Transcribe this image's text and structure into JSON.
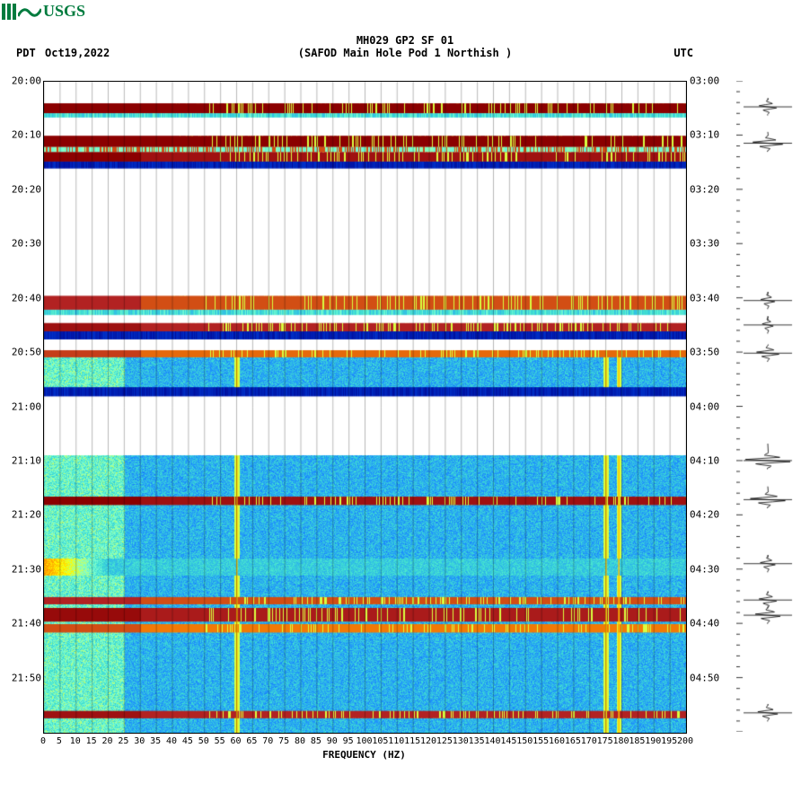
{
  "logo": {
    "text": "USGS",
    "color": "#007b3e"
  },
  "header": {
    "title_main": "MH029 GP2 SF 01",
    "title_sub": "(SAFOD Main Hole Pod 1 Northish )",
    "tz_left": "PDT",
    "date": "Oct19,2022",
    "tz_right": "UTC"
  },
  "axes": {
    "x_title": "FREQUENCY (HZ)",
    "x_min": 0,
    "x_max": 200,
    "x_ticks": [
      0,
      5,
      10,
      15,
      20,
      25,
      30,
      35,
      40,
      45,
      50,
      55,
      60,
      65,
      70,
      75,
      80,
      85,
      90,
      95,
      100,
      105,
      110,
      115,
      120,
      125,
      130,
      135,
      140,
      145,
      150,
      155,
      160,
      165,
      170,
      175,
      180,
      185,
      190,
      195,
      200
    ],
    "y_left_ticks": [
      "20:00",
      "20:10",
      "20:20",
      "20:30",
      "20:40",
      "20:50",
      "21:00",
      "21:10",
      "21:20",
      "21:30",
      "21:40",
      "21:50"
    ],
    "y_right_ticks": [
      "03:00",
      "03:10",
      "03:20",
      "03:30",
      "03:40",
      "03:50",
      "04:00",
      "04:10",
      "04:20",
      "04:30",
      "04:40",
      "04:50"
    ],
    "y_minutes_total": 120
  },
  "colormap": {
    "stops": [
      {
        "v": 0.0,
        "c": "#00008b"
      },
      {
        "v": 0.18,
        "c": "#0033cc"
      },
      {
        "v": 0.35,
        "c": "#1e90ff"
      },
      {
        "v": 0.48,
        "c": "#40e0d0"
      },
      {
        "v": 0.55,
        "c": "#7fffd4"
      },
      {
        "v": 0.65,
        "c": "#ffff00"
      },
      {
        "v": 0.78,
        "c": "#ff8c00"
      },
      {
        "v": 0.9,
        "c": "#b22222"
      },
      {
        "v": 1.0,
        "c": "#8b0000"
      }
    ],
    "background": "#ffffff",
    "grid_color": "#000000"
  },
  "bands": [
    {
      "start_min": 4.0,
      "end_min": 5.8,
      "type": "event",
      "intensity": 1.0
    },
    {
      "start_min": 5.8,
      "end_min": 6.6,
      "type": "cyan"
    },
    {
      "start_min": 10.0,
      "end_min": 12.0,
      "type": "event",
      "intensity": 1.0
    },
    {
      "start_min": 12.0,
      "end_min": 13.0,
      "type": "mixed"
    },
    {
      "start_min": 13.0,
      "end_min": 14.7,
      "type": "event",
      "intensity": 0.95
    },
    {
      "start_min": 14.7,
      "end_min": 16.0,
      "type": "blue"
    },
    {
      "start_min": 39.5,
      "end_min": 42.0,
      "type": "event",
      "intensity": 0.85
    },
    {
      "start_min": 42.0,
      "end_min": 43.0,
      "type": "cyan"
    },
    {
      "start_min": 44.5,
      "end_min": 46.0,
      "type": "event",
      "intensity": 0.9
    },
    {
      "start_min": 46.0,
      "end_min": 47.5,
      "type": "blue"
    },
    {
      "start_min": 49.5,
      "end_min": 50.8,
      "type": "event",
      "intensity": 0.82
    },
    {
      "start_min": 50.8,
      "end_min": 56.3,
      "type": "cyan_field"
    },
    {
      "start_min": 56.3,
      "end_min": 58.0,
      "type": "blue"
    },
    {
      "start_min": 69.0,
      "end_min": 120.0,
      "type": "cyan_field"
    },
    {
      "start_min": 76.5,
      "end_min": 78.0,
      "type": "event",
      "intensity": 0.95
    },
    {
      "start_min": 88.0,
      "end_min": 91.0,
      "type": "low_freq_warm"
    },
    {
      "start_min": 95.0,
      "end_min": 96.3,
      "type": "event",
      "intensity": 0.85
    },
    {
      "start_min": 97.0,
      "end_min": 99.5,
      "type": "event",
      "intensity": 0.92
    },
    {
      "start_min": 100.0,
      "end_min": 101.5,
      "type": "event",
      "intensity": 0.8
    },
    {
      "start_min": 116.0,
      "end_min": 117.3,
      "type": "event",
      "intensity": 0.9
    }
  ],
  "persistent_vlines_hz": [
    60,
    175,
    179
  ],
  "wiggles": [
    {
      "min": 4.8,
      "amp": 0.35
    },
    {
      "min": 11.5,
      "amp": 0.6
    },
    {
      "min": 40.5,
      "amp": 0.28
    },
    {
      "min": 45.0,
      "amp": 0.22
    },
    {
      "min": 50.2,
      "amp": 0.45
    },
    {
      "min": 70.0,
      "amp": 0.9
    },
    {
      "min": 77.2,
      "amp": 0.7
    },
    {
      "min": 89.0,
      "amp": 0.3
    },
    {
      "min": 95.7,
      "amp": 0.35
    },
    {
      "min": 98.5,
      "amp": 0.5
    },
    {
      "min": 116.5,
      "amp": 0.4
    }
  ]
}
